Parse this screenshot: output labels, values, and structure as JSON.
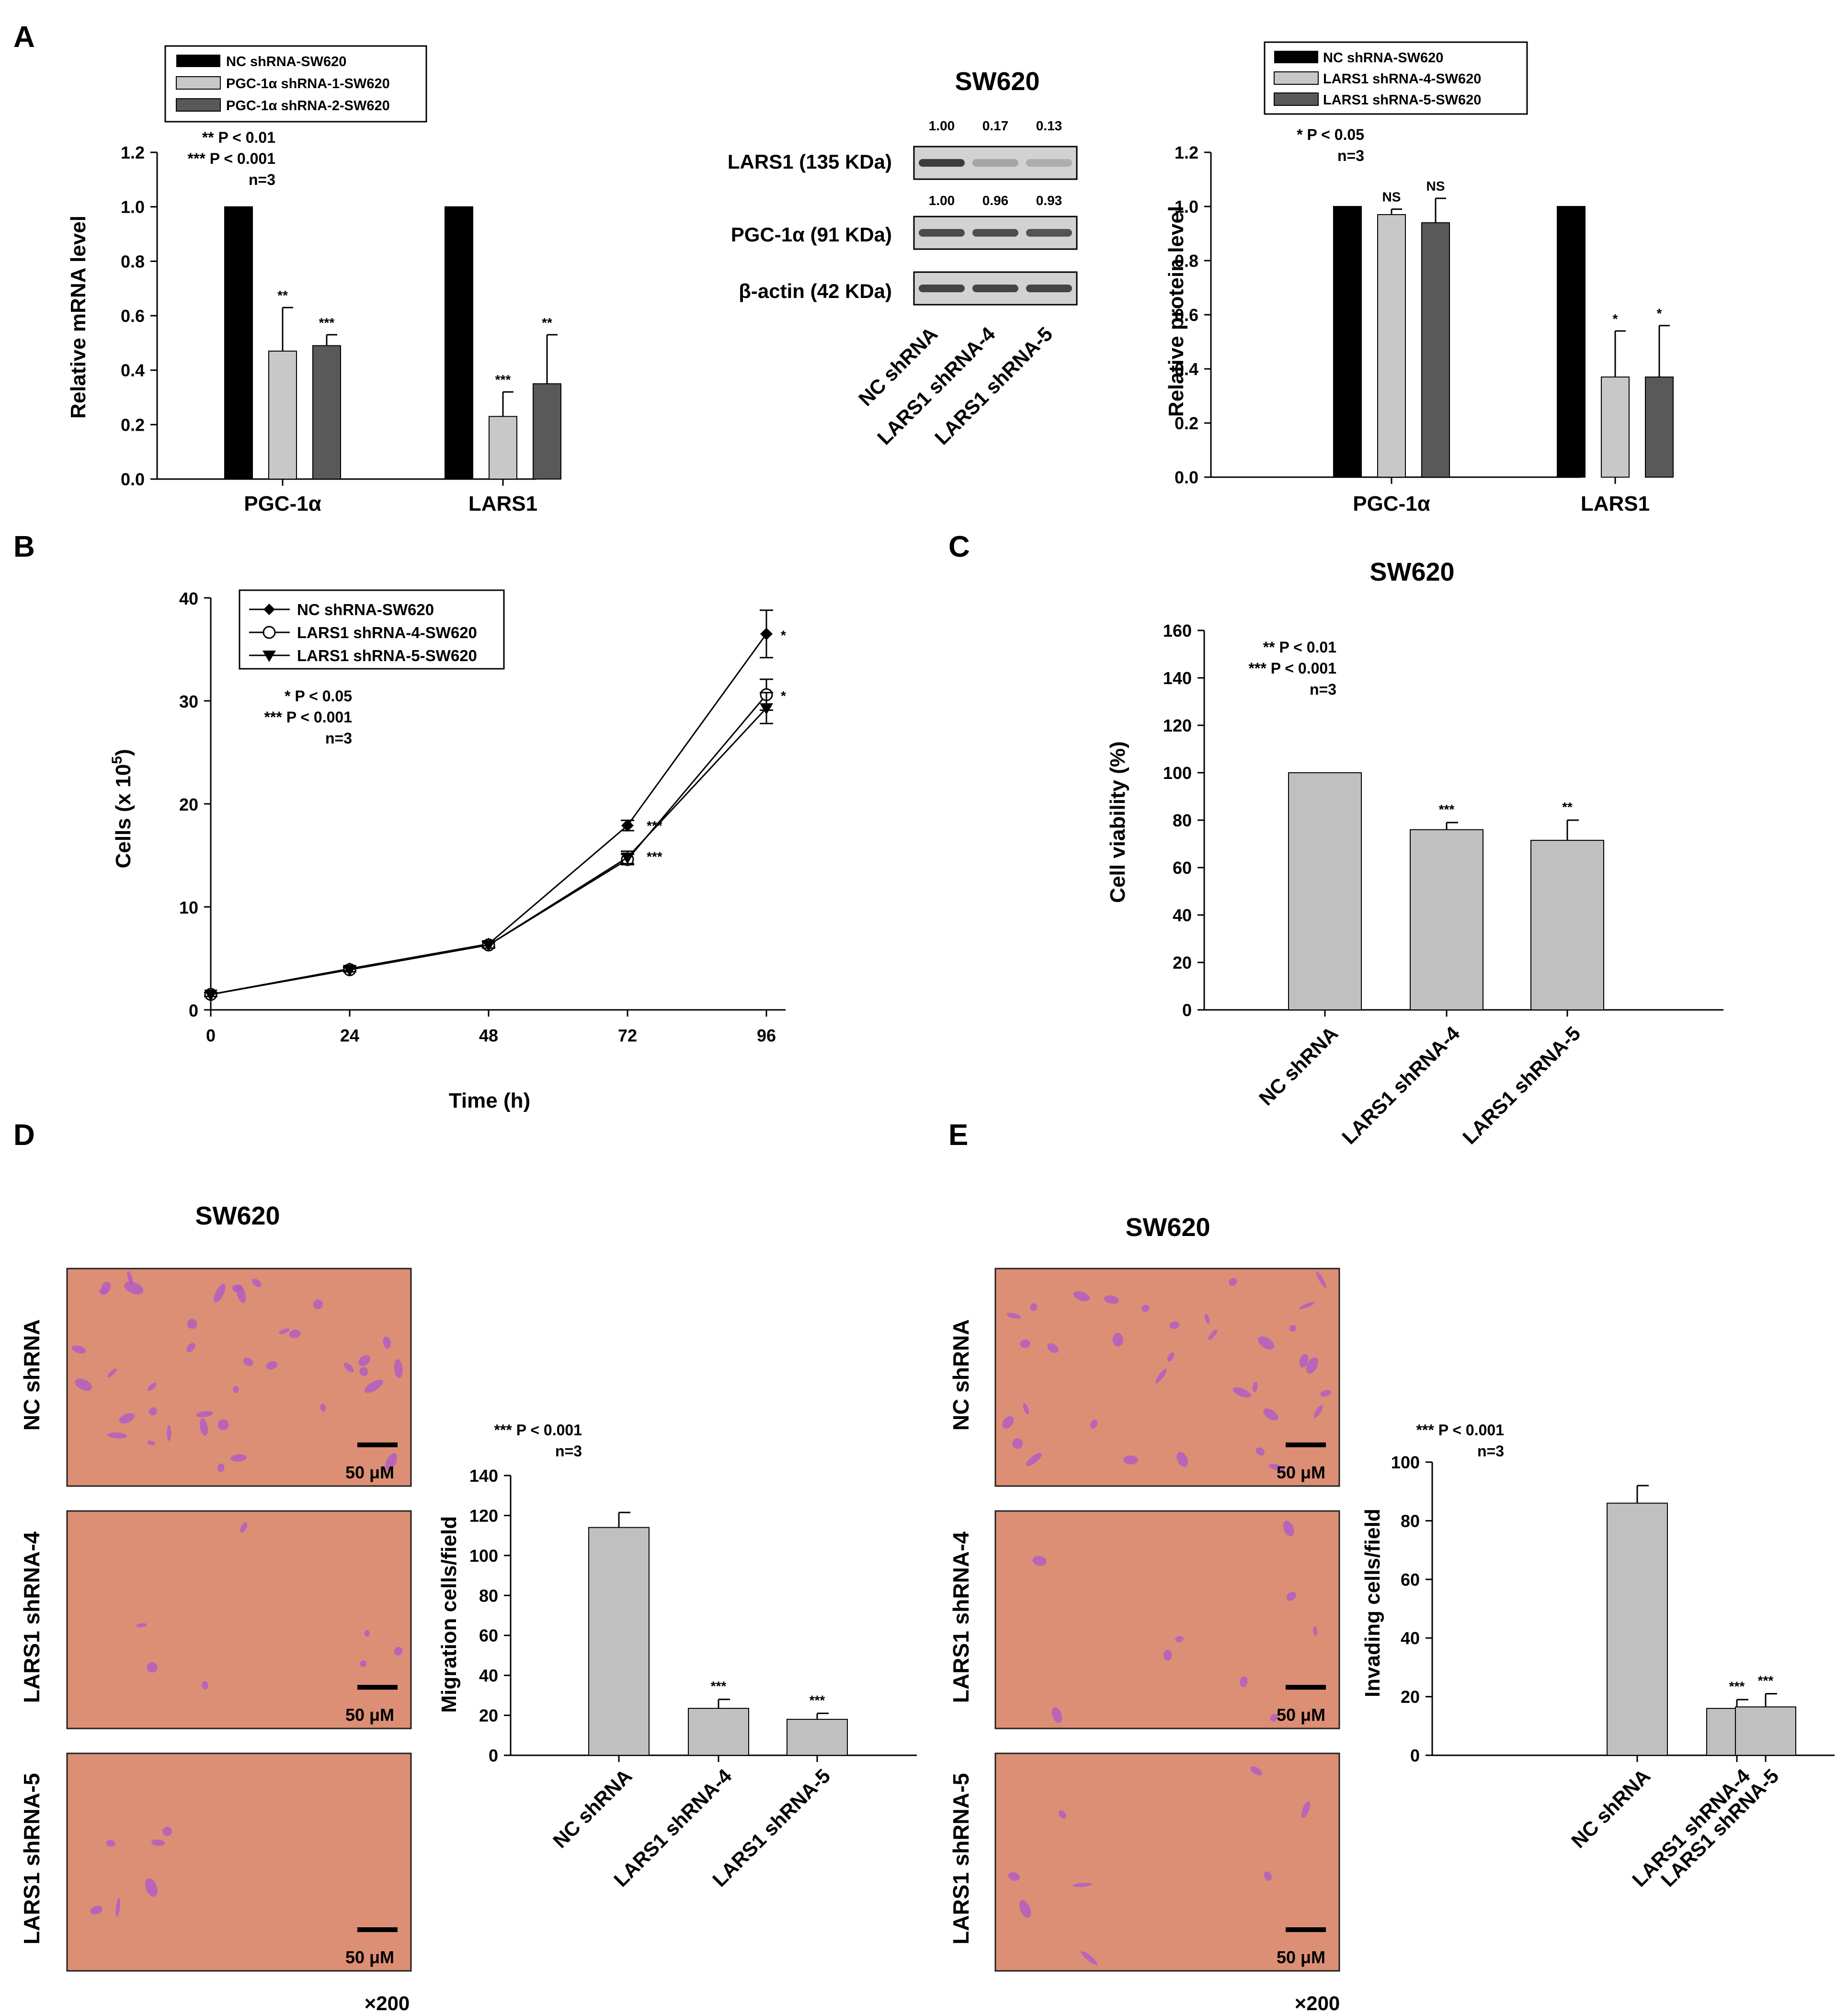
{
  "colors": {
    "nc": "#000000",
    "kd1": "#c8c8c8",
    "kd2": "#595959",
    "gray_bar": "#c0c0c0",
    "tissue": "#dc8f74",
    "stain": "#b05ac8"
  },
  "panels": {
    "a": {
      "letter": "A",
      "mrna": {
        "legend": [
          "NC shRNA-SW620",
          "PGC-1α shRNA-1-SW620",
          "PGC-1α shRNA-2-SW620"
        ],
        "stat_lines": [
          "** P < 0.01",
          "*** P < 0.001",
          "n=3"
        ]
      },
      "blot": {
        "title": "SW620",
        "bands": [
          {
            "label": "LARS1 (135 KDa)",
            "values": [
              "1.00",
              "0.17",
              "0.13"
            ],
            "intensity": [
              1.0,
              0.3,
              0.25
            ]
          },
          {
            "label": "PGC-1α (91 KDa)",
            "values": [
              "1.00",
              "0.96",
              "0.93"
            ],
            "intensity": [
              0.9,
              0.88,
              0.85
            ]
          },
          {
            "label": "β-actin (42 KDa)",
            "values": [],
            "intensity": [
              0.95,
              0.95,
              0.95
            ]
          }
        ],
        "lanes": [
          "NC shRNA",
          "LARS1 shRNA-4",
          "LARS1 shRNA-5"
        ]
      },
      "protein": {
        "legend": [
          "NC shRNA-SW620",
          "LARS1 shRNA-4-SW620",
          "LARS1 shRNA-5-SW620"
        ],
        "stat_lines": [
          "* P < 0.05",
          "n=3"
        ]
      }
    },
    "b": {
      "letter": "B",
      "stat_lines": [
        "* P < 0.05",
        "*** P < 0.001",
        "n=3"
      ]
    },
    "c": {
      "letter": "C",
      "title": "SW620",
      "stat_lines": [
        "** P < 0.01",
        "*** P < 0.001",
        "n=3"
      ]
    },
    "d": {
      "letter": "D",
      "title": "SW620",
      "images": [
        {
          "label": "NC shRNA",
          "scale": "50 μM",
          "density": 38
        },
        {
          "label": "LARS1 shRNA-4",
          "scale": "50 μM",
          "density": 7
        },
        {
          "label": "LARS1 shRNA-5",
          "scale": "50 μM",
          "density": 6
        }
      ],
      "magnification": "×200",
      "stat_lines": [
        "*** P < 0.001",
        "n=3"
      ]
    },
    "e": {
      "letter": "E",
      "title": "SW620",
      "images": [
        {
          "label": "NC shRNA",
          "scale": "50 μM",
          "density": 34
        },
        {
          "label": "LARS1 shRNA-4",
          "scale": "50 μM",
          "density": 9
        },
        {
          "label": "LARS1 shRNA-5",
          "scale": "50 μM",
          "density": 8
        }
      ],
      "magnification": "×200",
      "stat_lines": [
        "*** P < 0.001",
        "n=3"
      ]
    }
  },
  "chart_data": [
    {
      "id": "a-mrna",
      "type": "bar",
      "ylabel": "Relative mRNA level",
      "ylim": [
        0,
        1.2
      ],
      "yticks": [
        0.0,
        0.2,
        0.4,
        0.6,
        0.8,
        1.0,
        1.2
      ],
      "categories": [
        "PGC-1α",
        "LARS1"
      ],
      "series": [
        {
          "name": "NC shRNA-SW620",
          "values": [
            1.0,
            1.0
          ],
          "errors": [
            0,
            0
          ],
          "sig": [
            "",
            ""
          ]
        },
        {
          "name": "PGC-1α shRNA-1-SW620",
          "values": [
            0.47,
            0.23
          ],
          "errors": [
            0.16,
            0.09
          ],
          "sig": [
            "**",
            "***"
          ]
        },
        {
          "name": "PGC-1α shRNA-2-SW620",
          "values": [
            0.49,
            0.35
          ],
          "errors": [
            0.04,
            0.18
          ],
          "sig": [
            "***",
            "**"
          ]
        }
      ]
    },
    {
      "id": "a-protein",
      "type": "bar",
      "ylabel": "Relative protein level",
      "ylim": [
        0,
        1.2
      ],
      "yticks": [
        0.0,
        0.2,
        0.4,
        0.6,
        0.8,
        1.0,
        1.2
      ],
      "categories": [
        "PGC-1α",
        "LARS1"
      ],
      "series": [
        {
          "name": "NC shRNA-SW620",
          "values": [
            1.0,
            1.0
          ],
          "errors": [
            0,
            0
          ],
          "sig": [
            "",
            ""
          ]
        },
        {
          "name": "LARS1 shRNA-4-SW620",
          "values": [
            0.97,
            0.37
          ],
          "errors": [
            0.02,
            0.17
          ],
          "sig": [
            "NS",
            "*"
          ]
        },
        {
          "name": "LARS1 shRNA-5-SW620",
          "values": [
            0.94,
            0.37
          ],
          "errors": [
            0.09,
            0.19
          ],
          "sig": [
            "NS",
            "*"
          ]
        }
      ]
    },
    {
      "id": "b-growth",
      "type": "line",
      "xlabel": "Time (h)",
      "ylabel": "Cells (x 10^5)",
      "ylabel_main": "Cells (x 10",
      "ylabel_sup": "5",
      "ylabel_end": ")",
      "xlim": [
        0,
        96
      ],
      "ylim": [
        0,
        40
      ],
      "xticks": [
        0,
        24,
        48,
        72,
        96
      ],
      "yticks": [
        0,
        10,
        20,
        30,
        40
      ],
      "x": [
        0,
        24,
        48,
        72,
        96
      ],
      "series": [
        {
          "name": "NC shRNA-SW620",
          "marker": "diamond",
          "values": [
            1.5,
            4.0,
            6.4,
            17.9,
            36.5
          ],
          "errors": [
            0.2,
            0.2,
            0.3,
            0.5,
            2.3
          ]
        },
        {
          "name": "LARS1 shRNA-4-SW620",
          "marker": "circle",
          "values": [
            1.5,
            3.9,
            6.3,
            14.6,
            30.6
          ],
          "errors": [
            0.2,
            0.2,
            0.3,
            0.5,
            1.5
          ]
        },
        {
          "name": "LARS1 shRNA-5-SW620",
          "marker": "triangle",
          "values": [
            1.5,
            3.9,
            6.3,
            14.8,
            29.3
          ],
          "errors": [
            0.2,
            0.2,
            0.3,
            0.6,
            1.5
          ]
        }
      ],
      "annotations": [
        {
          "x": 72,
          "y": 18.0,
          "text": "***"
        },
        {
          "x": 72,
          "y": 15.0,
          "text": "***"
        },
        {
          "x": 96,
          "y": 36.5,
          "text": "*"
        },
        {
          "x": 96,
          "y": 30.6,
          "text": "*"
        }
      ]
    },
    {
      "id": "c-viability",
      "type": "bar",
      "ylabel": "Cell viability (%)",
      "ylim": [
        0,
        160
      ],
      "yticks": [
        0,
        20,
        40,
        60,
        80,
        100,
        120,
        140,
        160
      ],
      "categories": [
        "NC shRNA",
        "LARS1 shRNA-4",
        "LARS1 shRNA-5"
      ],
      "values": [
        100,
        76,
        71.5
      ],
      "errors": [
        0,
        3,
        8.5
      ],
      "sig": [
        "",
        "***",
        "**"
      ]
    },
    {
      "id": "d-migration",
      "type": "bar",
      "ylabel": "Migration cells/field",
      "ylim": [
        0,
        140
      ],
      "yticks": [
        0,
        20,
        40,
        60,
        80,
        100,
        120,
        140
      ],
      "categories": [
        "NC shRNA",
        "LARS1 shRNA-4",
        "LARS1 shRNA-5"
      ],
      "values": [
        114,
        23.5,
        18
      ],
      "errors": [
        7.5,
        4.5,
        3
      ],
      "sig": [
        "",
        "***",
        "***"
      ]
    },
    {
      "id": "e-invasion",
      "type": "bar",
      "ylabel": "Invading cells/field",
      "ylim": [
        0,
        100
      ],
      "yticks": [
        0,
        20,
        40,
        60,
        80,
        100
      ],
      "categories": [
        "NC shRNA",
        "LARS1 shRNA-4",
        "LARS1 shRNA-5"
      ],
      "values": [
        86,
        16,
        16.5
      ],
      "errors": [
        6,
        3,
        4.5
      ],
      "sig": [
        "",
        "***",
        "***"
      ]
    }
  ]
}
